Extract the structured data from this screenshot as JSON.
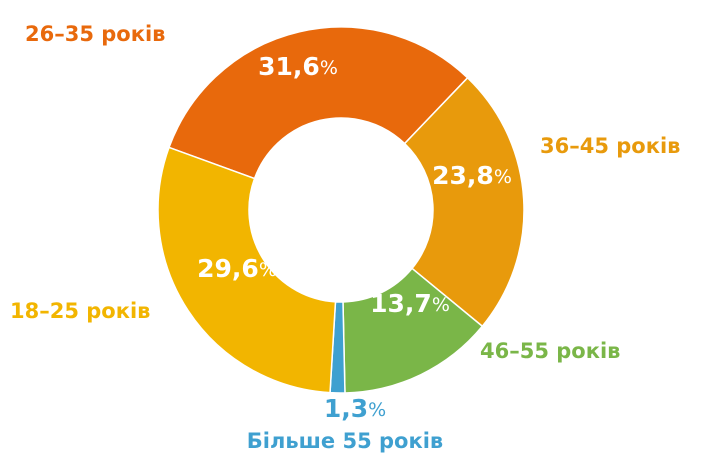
{
  "chart_data": {
    "type": "donut",
    "categories": [
      "26–35 років",
      "36–45 років",
      "46–55 років",
      "Більше 55 років",
      "18–25 років"
    ],
    "values": [
      31.6,
      23.8,
      13.7,
      1.3,
      29.6
    ],
    "value_labels": [
      "31,6%",
      "23,8%",
      "13,7%",
      "1,3%",
      "29,6%"
    ],
    "colors": [
      "#e8690c",
      "#e89a0c",
      "#7ab648",
      "#3fa0d0",
      "#f2b500"
    ]
  }
}
